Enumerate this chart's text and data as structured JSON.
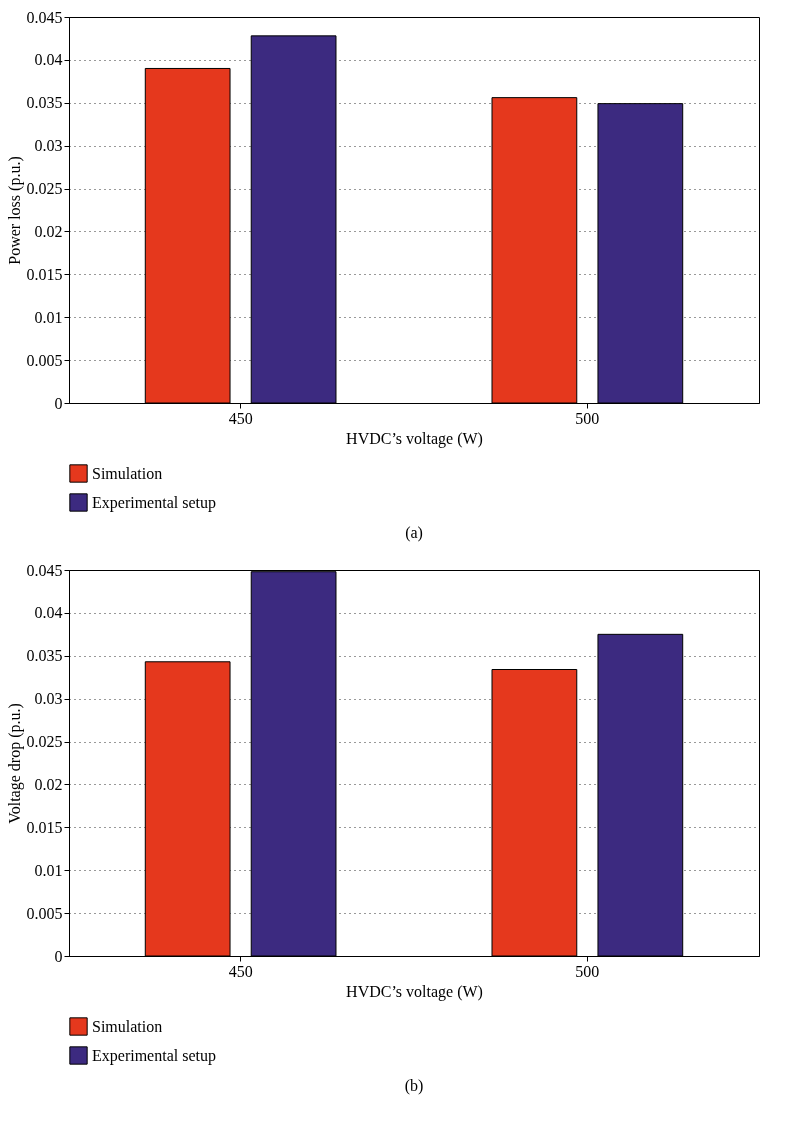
{
  "chart_data": [
    {
      "type": "bar",
      "xlabel": "HVDC’s voltage (W)",
      "ylabel": "Power loss (p.u.)",
      "categories": [
        "450",
        "500"
      ],
      "series": [
        {
          "name": "Simulation",
          "color": "#e5381d",
          "values": [
            0.039,
            0.0356
          ]
        },
        {
          "name": "Experimental setup",
          "color": "#3c2a80",
          "values": [
            0.0428,
            0.0349
          ]
        }
      ],
      "ylim": [
        0,
        0.045
      ],
      "yticks": [
        0,
        0.005,
        0.01,
        0.015,
        0.02,
        0.025,
        0.03,
        0.035,
        0.04,
        0.045
      ],
      "grid": true,
      "legend": "bottom",
      "annotations": [
        "(a)"
      ]
    },
    {
      "type": "bar",
      "xlabel": "HVDC’s voltage (W)",
      "ylabel": "Voltage drop (p.u.)",
      "categories": [
        "450",
        "500"
      ],
      "series": [
        {
          "name": "Simulation",
          "color": "#e5381d",
          "values": [
            0.0343,
            0.0334
          ]
        },
        {
          "name": "Experimental setup",
          "color": "#3c2a80",
          "values": [
            0.0448,
            0.0375
          ]
        }
      ],
      "ylim": [
        0,
        0.045
      ],
      "yticks": [
        0,
        0.005,
        0.01,
        0.015,
        0.02,
        0.025,
        0.03,
        0.035,
        0.04,
        0.045
      ],
      "grid": true,
      "legend": "bottom",
      "annotations": [
        "(b)"
      ]
    }
  ]
}
